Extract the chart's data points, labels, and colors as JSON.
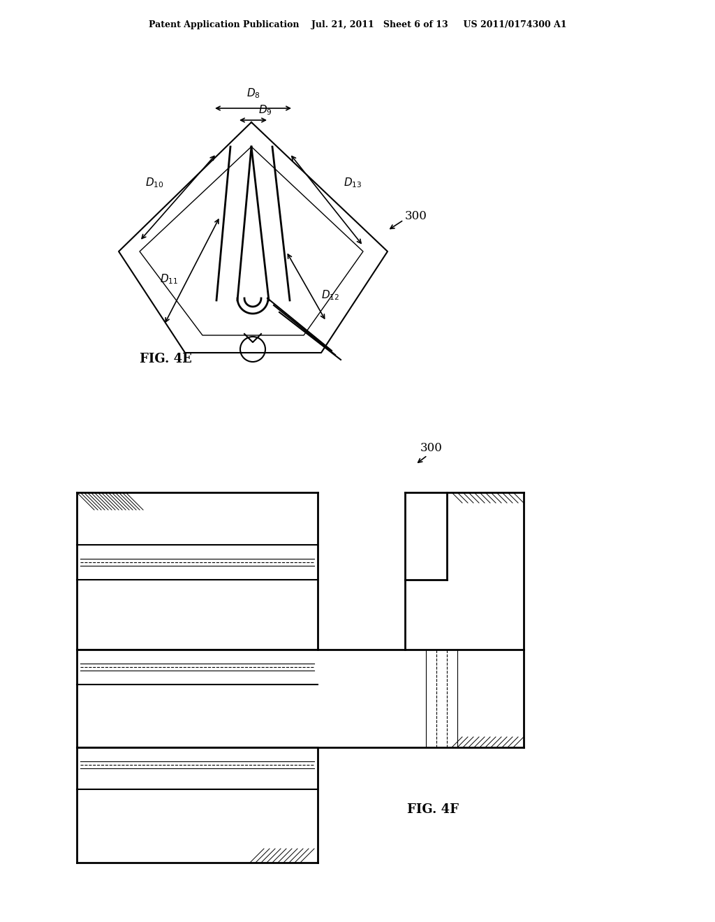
{
  "title_text": "Patent Application Publication    Jul. 21, 2011   Sheet 6 of 13     US 2011/0174300 A1",
  "fig4e_label": "FIG. 4E",
  "fig4f_label": "FIG. 4F",
  "ref_300_label": "300",
  "bg_color": "#ffffff",
  "line_color": "#000000",
  "dim_labels": [
    "D_8",
    "D_9",
    "D_10",
    "D_11",
    "D_12",
    "D_13"
  ]
}
